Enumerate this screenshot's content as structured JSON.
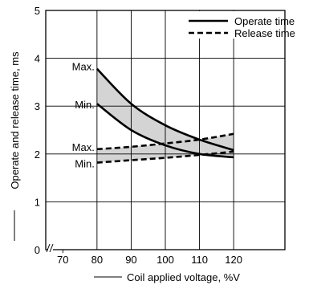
{
  "chart_data": {
    "type": "line",
    "xlabel": "Coil applied voltage, %V",
    "ylabel": "Operate and release time, ms",
    "xlim": [
      65,
      135
    ],
    "ylim": [
      0,
      5
    ],
    "x_ticks": [
      70,
      80,
      90,
      100,
      110,
      120
    ],
    "y_ticks": [
      0,
      1,
      2,
      3,
      4,
      5
    ],
    "grid": true,
    "legend_position": "top-right",
    "legend": [
      {
        "name": "Operate time",
        "style": "solid"
      },
      {
        "name": "Release time",
        "style": "dashed"
      }
    ],
    "series": [
      {
        "group": "Operate time",
        "label": "Max.",
        "style": "solid",
        "x": [
          80,
          90,
          100,
          110,
          120
        ],
        "y": [
          3.78,
          3.05,
          2.6,
          2.3,
          2.08
        ]
      },
      {
        "group": "Operate time",
        "label": "Min.",
        "style": "solid",
        "x": [
          80,
          90,
          100,
          110,
          120
        ],
        "y": [
          3.05,
          2.5,
          2.18,
          2.0,
          1.93
        ]
      },
      {
        "group": "Release time",
        "label": "Max.",
        "style": "dashed",
        "x": [
          80,
          90,
          100,
          110,
          120
        ],
        "y": [
          2.1,
          2.15,
          2.22,
          2.3,
          2.42
        ]
      },
      {
        "group": "Release time",
        "label": "Min.",
        "style": "dashed",
        "x": [
          80,
          90,
          100,
          110,
          120
        ],
        "y": [
          1.82,
          1.87,
          1.92,
          1.98,
          2.05
        ]
      }
    ],
    "colors": {
      "band_fill": "#d4d4d4",
      "line": "#000000",
      "grid": "#000000"
    }
  }
}
